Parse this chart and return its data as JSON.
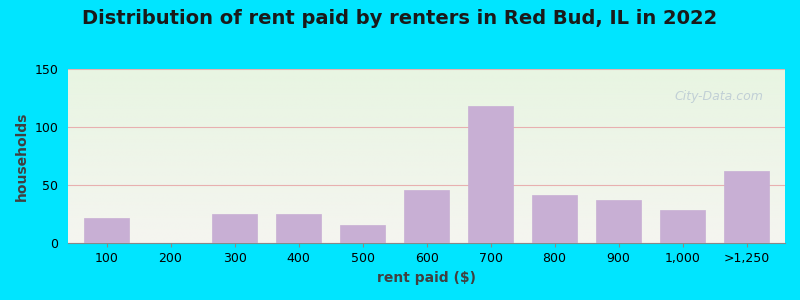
{
  "title": "Distribution of rent paid by renters in Red Bud, IL in 2022",
  "xlabel": "rent paid ($)",
  "ylabel": "households",
  "categories": [
    "100",
    "200",
    "300",
    "400",
    "500",
    "600",
    "700",
    "800",
    "900",
    "1,000",
    ">1,250"
  ],
  "values": [
    22,
    0,
    25,
    25,
    16,
    46,
    118,
    42,
    37,
    29,
    62
  ],
  "bar_color": "#c8afd4",
  "bar_edgecolor": "#c8afd4",
  "ylim": [
    0,
    150
  ],
  "yticks": [
    0,
    50,
    100,
    150
  ],
  "background_top": "#e8f5e2",
  "background_bottom": "#f5f5f0",
  "grid_color": "#e8b0b0",
  "title_fontsize": 14,
  "axis_label_fontsize": 10,
  "tick_fontsize": 9,
  "outer_bg": "#00e5ff",
  "watermark_text": "City-Data.com",
  "watermark_color": "#b0c0d0"
}
